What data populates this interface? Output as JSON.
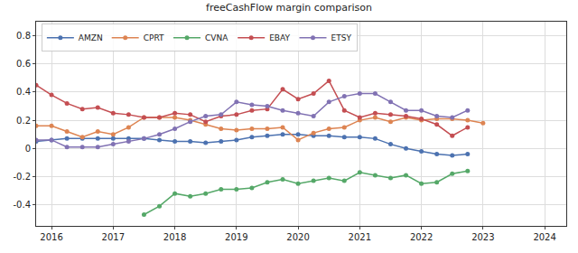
{
  "chart_data": {
    "type": "line",
    "title": "freeCashFlow margin comparison",
    "x": [
      2015.75,
      2016.0,
      2016.25,
      2016.5,
      2016.75,
      2017.0,
      2017.25,
      2017.5,
      2017.75,
      2018.0,
      2018.25,
      2018.5,
      2018.75,
      2019.0,
      2019.25,
      2019.5,
      2019.75,
      2020.0,
      2020.25,
      2020.5,
      2020.75,
      2021.0,
      2021.25,
      2021.5,
      2021.75,
      2022.0,
      2022.25,
      2022.5,
      2022.75,
      2023.0
    ],
    "series": [
      {
        "name": "AMZN",
        "color": "#4c72b0",
        "values": [
          0.05,
          0.06,
          0.07,
          0.07,
          0.07,
          0.07,
          0.07,
          0.07,
          0.06,
          0.05,
          0.05,
          0.04,
          0.05,
          0.06,
          0.08,
          0.09,
          0.1,
          0.1,
          0.09,
          0.09,
          0.08,
          0.08,
          0.07,
          0.03,
          0.0,
          -0.02,
          -0.04,
          -0.05,
          -0.04,
          null
        ]
      },
      {
        "name": "CPRT",
        "color": "#dd8452",
        "values": [
          0.16,
          0.16,
          0.12,
          0.08,
          0.12,
          0.1,
          0.15,
          0.22,
          0.22,
          0.22,
          0.2,
          0.17,
          0.14,
          0.13,
          0.14,
          0.14,
          0.15,
          0.06,
          0.11,
          0.14,
          0.15,
          0.2,
          0.22,
          0.19,
          0.22,
          0.2,
          0.21,
          0.21,
          0.2,
          0.18
        ]
      },
      {
        "name": "CVNA",
        "color": "#55a868",
        "values": [
          null,
          null,
          null,
          null,
          null,
          null,
          null,
          -0.47,
          -0.41,
          -0.32,
          -0.34,
          -0.32,
          -0.29,
          -0.29,
          -0.28,
          -0.24,
          -0.22,
          -0.25,
          -0.23,
          -0.21,
          -0.23,
          -0.17,
          -0.19,
          -0.21,
          -0.19,
          -0.25,
          -0.24,
          -0.18,
          -0.16,
          null
        ]
      },
      {
        "name": "EBAY",
        "color": "#c44e52",
        "values": [
          0.45,
          0.38,
          0.32,
          0.28,
          0.29,
          0.25,
          0.24,
          0.22,
          0.22,
          0.25,
          0.24,
          0.19,
          0.23,
          0.24,
          0.27,
          0.28,
          0.42,
          0.35,
          0.39,
          0.48,
          0.27,
          0.22,
          0.25,
          0.24,
          0.23,
          0.21,
          0.17,
          0.09,
          0.15,
          null
        ]
      },
      {
        "name": "ETSY",
        "color": "#8172b3",
        "values": [
          0.06,
          0.06,
          0.01,
          0.01,
          0.01,
          0.03,
          0.05,
          0.07,
          0.1,
          0.14,
          0.19,
          0.23,
          0.24,
          0.33,
          0.31,
          0.3,
          0.27,
          0.25,
          0.23,
          0.33,
          0.37,
          0.39,
          0.39,
          0.33,
          0.27,
          0.27,
          0.23,
          0.22,
          0.27,
          null
        ]
      }
    ],
    "xlim": [
      2015.75,
      2024.35
    ],
    "xticks": [
      2016,
      2017,
      2018,
      2019,
      2020,
      2021,
      2022,
      2023,
      2024
    ],
    "ylim": [
      -0.55,
      0.9
    ],
    "yticks": [
      -0.4,
      -0.2,
      0.0,
      0.2,
      0.4,
      0.6,
      0.8
    ],
    "grid": true,
    "legend": "upper left",
    "marker": "circle"
  }
}
